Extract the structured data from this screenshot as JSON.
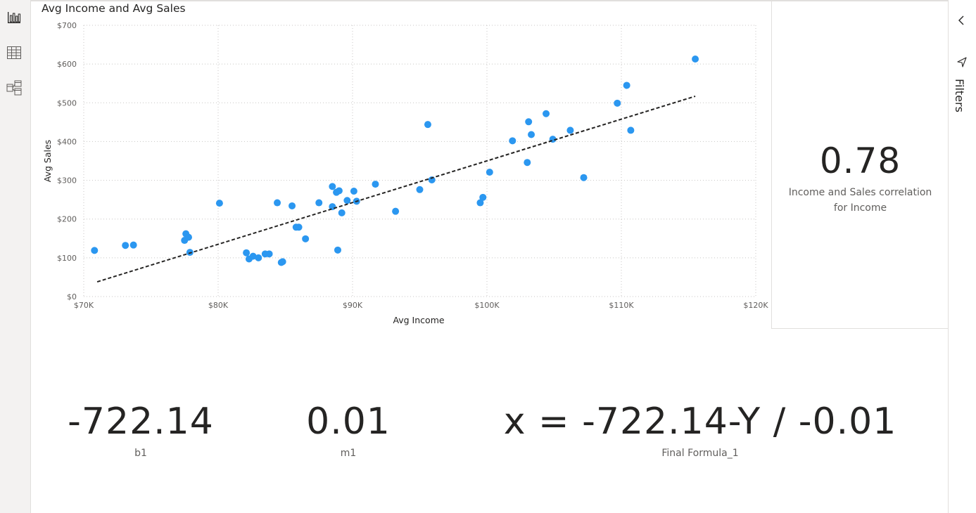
{
  "nav": {
    "report_view_icon": "bar-chart-icon",
    "data_view_icon": "table-icon",
    "model_view_icon": "model-icon"
  },
  "visual": {
    "title": "Avg Income and Avg Sales"
  },
  "chart_data": {
    "type": "scatter",
    "title": "Avg Income and Avg Sales",
    "xlabel": "Avg Income",
    "ylabel": "Avg Sales",
    "xlim": [
      70000,
      120000
    ],
    "ylim": [
      0,
      700
    ],
    "x_ticks": [
      70000,
      80000,
      90000,
      100000,
      110000,
      120000
    ],
    "x_tick_labels": [
      "$70K",
      "$80K",
      "$90K",
      "$100K",
      "$110K",
      "$120K"
    ],
    "y_ticks": [
      0,
      100,
      200,
      300,
      400,
      500,
      600,
      700
    ],
    "y_tick_labels": [
      "$0",
      "$100",
      "$200",
      "$300",
      "$400",
      "$500",
      "$600",
      "$700"
    ],
    "grid": true,
    "point_color": "#2b97f0",
    "trend_color": "#252423",
    "trendline": {
      "x": [
        71000,
        115500
      ],
      "y": [
        38,
        517
      ]
    },
    "points": [
      [
        70800,
        119
      ],
      [
        73100,
        132
      ],
      [
        73700,
        133
      ],
      [
        77500,
        145
      ],
      [
        77600,
        162
      ],
      [
        77800,
        153
      ],
      [
        77900,
        114
      ],
      [
        80100,
        241
      ],
      [
        82100,
        113
      ],
      [
        82300,
        97
      ],
      [
        82600,
        104
      ],
      [
        83000,
        100
      ],
      [
        83500,
        110
      ],
      [
        83800,
        110
      ],
      [
        84400,
        242
      ],
      [
        84700,
        88
      ],
      [
        84800,
        90
      ],
      [
        85500,
        234
      ],
      [
        85800,
        179
      ],
      [
        86000,
        179
      ],
      [
        86500,
        149
      ],
      [
        87500,
        242
      ],
      [
        88500,
        232
      ],
      [
        88500,
        284
      ],
      [
        88800,
        269
      ],
      [
        88900,
        120
      ],
      [
        89000,
        273
      ],
      [
        89200,
        216
      ],
      [
        89600,
        248
      ],
      [
        90100,
        272
      ],
      [
        90300,
        246
      ],
      [
        91700,
        290
      ],
      [
        93200,
        220
      ],
      [
        95000,
        276
      ],
      [
        95600,
        444
      ],
      [
        95900,
        301
      ],
      [
        99500,
        242
      ],
      [
        99700,
        256
      ],
      [
        100200,
        321
      ],
      [
        101900,
        402
      ],
      [
        103000,
        346
      ],
      [
        103100,
        451
      ],
      [
        103300,
        418
      ],
      [
        104400,
        472
      ],
      [
        104900,
        406
      ],
      [
        106200,
        429
      ],
      [
        107200,
        307
      ],
      [
        109700,
        499
      ],
      [
        110400,
        545
      ],
      [
        110700,
        429
      ],
      [
        115500,
        613
      ]
    ]
  },
  "cards": {
    "correlation": {
      "value": "0.78",
      "caption_line1": "Income and Sales correlation",
      "caption_line2": "for Income"
    },
    "b1": {
      "value": "-722.14",
      "caption": "b1"
    },
    "m1": {
      "value": "0.01",
      "caption": "m1"
    },
    "formula": {
      "value": "x = -722.14-Y / -0.01",
      "caption": "Final Formula_1"
    }
  },
  "filters_pane": {
    "label": "Filters",
    "collapse_icon": "chevron-left-icon",
    "filter_icon": "filter-icon"
  },
  "colors": {
    "background": "#ffffff",
    "rail": "#f3f2f1",
    "border": "#e1dfdd",
    "accent": "#2b97f0"
  }
}
